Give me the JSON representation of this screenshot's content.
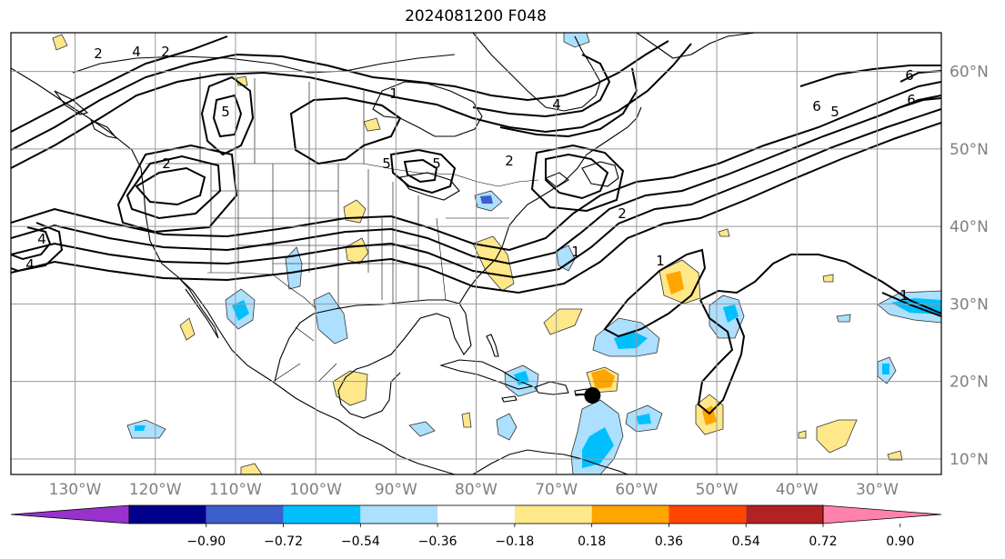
{
  "title": "2024081200 F048",
  "map": {
    "lon_range": [
      -138,
      -22
    ],
    "lat_range": [
      8,
      65
    ],
    "lon_ticks": [
      {
        "value": -130,
        "label": "130°W"
      },
      {
        "value": -120,
        "label": "120°W"
      },
      {
        "value": -110,
        "label": "110°W"
      },
      {
        "value": -100,
        "label": "100°W"
      },
      {
        "value": -90,
        "label": "90°W"
      },
      {
        "value": -80,
        "label": "80°W"
      },
      {
        "value": -70,
        "label": "70°W"
      },
      {
        "value": -60,
        "label": "60°W"
      },
      {
        "value": -50,
        "label": "50°W"
      },
      {
        "value": -40,
        "label": "40°W"
      },
      {
        "value": -30,
        "label": "30°W"
      }
    ],
    "lat_ticks": [
      {
        "value": 60,
        "label": "60°N"
      },
      {
        "value": 50,
        "label": "50°N"
      },
      {
        "value": 40,
        "label": "40°N"
      },
      {
        "value": 30,
        "label": "30°N"
      },
      {
        "value": 20,
        "label": "20°N"
      },
      {
        "value": 10,
        "label": "10°N"
      }
    ],
    "grid": true,
    "marker": {
      "lon": -65.5,
      "lat": 18.2,
      "color": "#000000"
    }
  },
  "colorbar": {
    "colors": [
      "#9932CC",
      "#00008B",
      "#3D5FCC",
      "#00BFFF",
      "#ADDFFF",
      "#FFFFFF",
      "#FFE88A",
      "#FFA500",
      "#FF4500",
      "#B22222",
      "#FF82AB"
    ],
    "labels": [
      "−0.90",
      "−0.72",
      "−0.54",
      "−0.36",
      "−0.18",
      "0.18",
      "0.36",
      "0.54",
      "0.72",
      "0.90"
    ]
  },
  "contour_labels": [
    "2",
    "4",
    "2",
    "5",
    "1",
    "2",
    "5",
    "4",
    "6",
    "5",
    "2",
    "1",
    "1",
    "1",
    "2",
    "4",
    "6",
    "6",
    "5",
    "4"
  ]
}
